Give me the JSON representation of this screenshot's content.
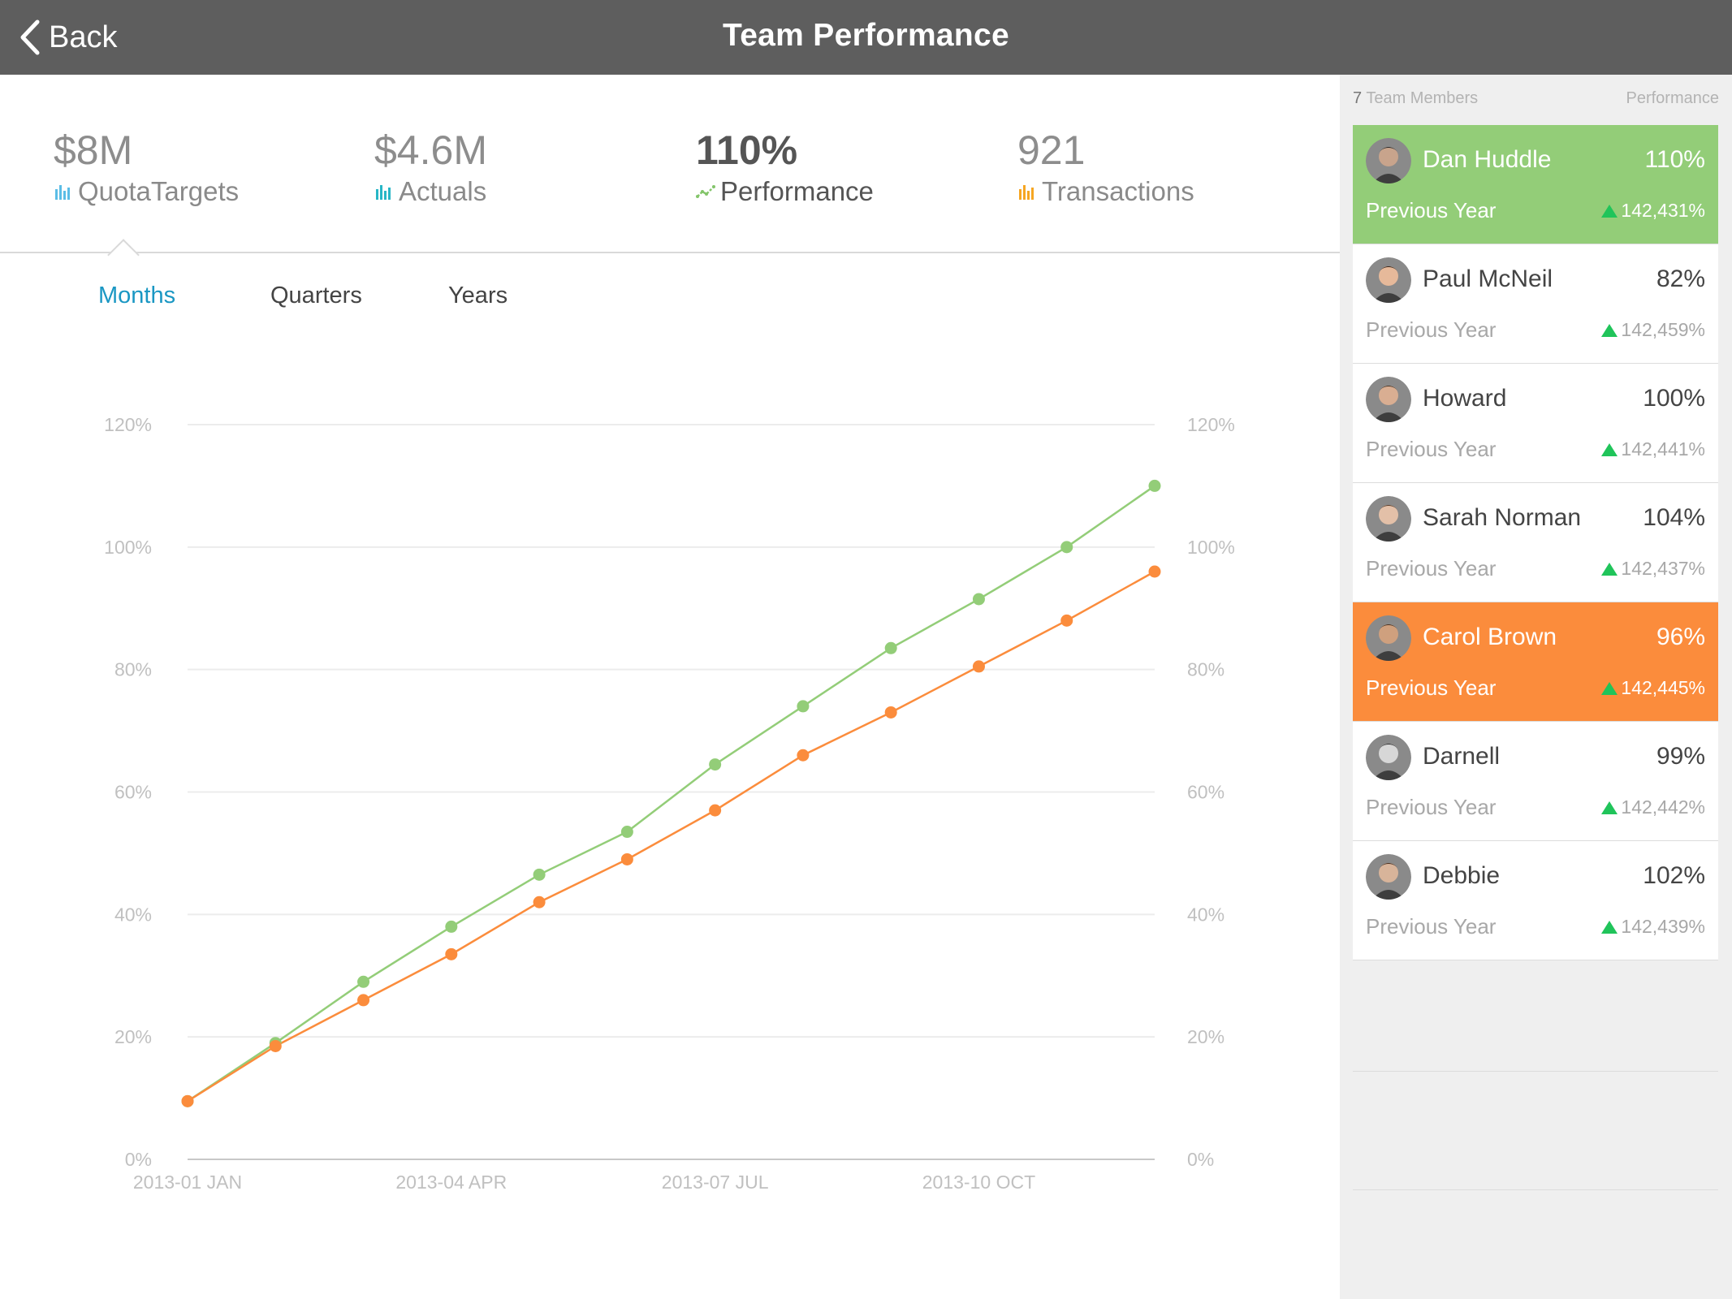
{
  "nav": {
    "back_label": "Back",
    "title": "Team Performance"
  },
  "kpis": [
    {
      "value": "$8M",
      "label": "QuotaTargets",
      "icon": "bar-chart-icon",
      "color": "#5bbde6"
    },
    {
      "value": "$4.6M",
      "label": "Actuals",
      "icon": "bar-chart-icon",
      "color": "#27b6c6"
    },
    {
      "value": "110%",
      "label": "Performance",
      "icon": "line-trend-icon",
      "color": "#84c56b"
    },
    {
      "value": "921",
      "label": "Transactions",
      "icon": "bar-chart-icon",
      "color": "#f6a623"
    }
  ],
  "tabs": [
    {
      "label": "Months",
      "active": true
    },
    {
      "label": "Quarters",
      "active": false
    },
    {
      "label": "Years",
      "active": false
    }
  ],
  "chart_data": {
    "type": "line",
    "x": [
      "2013-01",
      "2013-02",
      "2013-03",
      "2013-04",
      "2013-05",
      "2013-06",
      "2013-07",
      "2013-08",
      "2013-09",
      "2013-10",
      "2013-11",
      "2013-12"
    ],
    "xtick_labels": [
      {
        "index": 0,
        "label": "2013-01 JAN"
      },
      {
        "index": 3,
        "label": "2013-04 APR"
      },
      {
        "index": 6,
        "label": "2013-07 JUL"
      },
      {
        "index": 9,
        "label": "2013-10 OCT"
      }
    ],
    "series": [
      {
        "name": "Dan Huddle",
        "color": "#93cd78",
        "values": [
          9.5,
          19,
          29,
          38,
          46.5,
          53.5,
          64.5,
          74,
          83.5,
          91.5,
          100,
          110
        ]
      },
      {
        "name": "Carol Brown",
        "color": "#fb8c3c",
        "values": [
          9.5,
          18.5,
          26,
          33.5,
          42,
          49,
          57,
          66,
          73,
          80.5,
          88,
          96
        ]
      }
    ],
    "ylim": [
      0,
      120
    ],
    "yticks": [
      0,
      20,
      40,
      60,
      80,
      100,
      120
    ],
    "ytick_labels": [
      "0%",
      "20%",
      "40%",
      "60%",
      "80%",
      "100%",
      "120%"
    ],
    "grid": true
  },
  "sidebar": {
    "count": "7",
    "count_label": "Team Members",
    "perf_label": "Performance",
    "members": [
      {
        "name": "Dan Huddle",
        "pct": "110%",
        "prev_label": "Previous Year",
        "delta": "142,431%",
        "highlight": "green",
        "skin": "#c8a48c",
        "hair": "#2b2b2b"
      },
      {
        "name": "Paul McNeil",
        "pct": "82%",
        "prev_label": "Previous Year",
        "delta": "142,459%",
        "highlight": "",
        "skin": "#e6b99a",
        "hair": "#3a2418"
      },
      {
        "name": "Howard",
        "pct": "100%",
        "prev_label": "Previous Year",
        "delta": "142,441%",
        "highlight": "",
        "skin": "#d9ae92",
        "hair": "#4a3526"
      },
      {
        "name": "Sarah Norman",
        "pct": "104%",
        "prev_label": "Previous Year",
        "delta": "142,437%",
        "highlight": "",
        "skin": "#e3c0a8",
        "hair": "#5a3d2a"
      },
      {
        "name": "Carol Brown",
        "pct": "96%",
        "prev_label": "Previous Year",
        "delta": "142,445%",
        "highlight": "orange",
        "skin": "#cfa07e",
        "hair": "#4b3322"
      },
      {
        "name": "Darnell",
        "pct": "99%",
        "prev_label": "Previous Year",
        "delta": "142,442%",
        "highlight": "",
        "skin": "#d7d7d7",
        "hair": "#333333"
      },
      {
        "name": "Debbie",
        "pct": "102%",
        "prev_label": "Previous Year",
        "delta": "142,439%",
        "highlight": "",
        "skin": "#d8b49a",
        "hair": "#4a3020"
      }
    ]
  }
}
